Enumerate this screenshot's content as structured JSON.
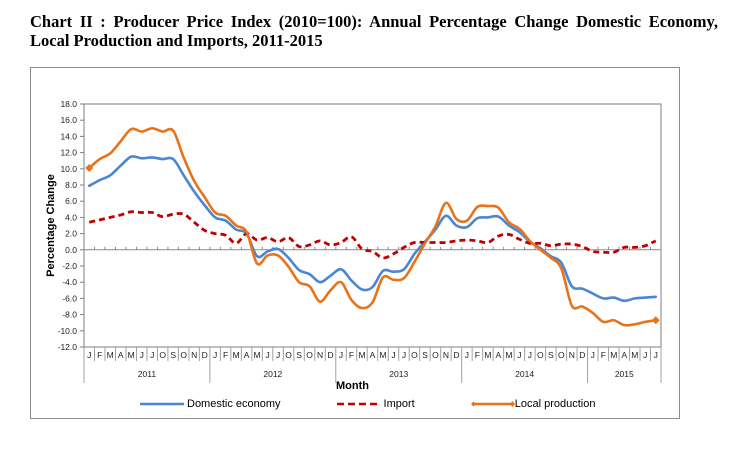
{
  "title": "Chart II : Producer Price Index (2010=100): Annual Percentage Change Domestic Economy, Local Production and Imports, 2011-2015",
  "chart_data": {
    "type": "line",
    "title": "Chart II : Producer Price Index (2010=100): Annual Percentage Change Domestic Economy, Local Production and Imports, 2011-2015",
    "xlabel": "Month",
    "ylabel": "Percentage Change",
    "ylim": [
      -12.0,
      18.0
    ],
    "yticks": [
      "18.0",
      "16.0",
      "14.0",
      "12.0",
      "10.0",
      "8.0",
      "6.0",
      "4.0",
      "2.0",
      "0.0",
      "-2.0",
      "-4.0",
      "-6.0",
      "-8.0",
      "-10.0",
      "-12.0"
    ],
    "years": [
      {
        "label": "2011",
        "months": [
          "J",
          "F",
          "M",
          "A",
          "M",
          "J",
          "J",
          "O",
          "S",
          "O",
          "N",
          "D"
        ]
      },
      {
        "label": "2012",
        "months": [
          "J",
          "F",
          "M",
          "A",
          "M",
          "J",
          "J",
          "O",
          "S",
          "O",
          "N",
          "D"
        ]
      },
      {
        "label": "2013",
        "months": [
          "J",
          "F",
          "M",
          "A",
          "M",
          "J",
          "J",
          "O",
          "S",
          "O",
          "N",
          "D"
        ]
      },
      {
        "label": "2014",
        "months": [
          "J",
          "F",
          "M",
          "A",
          "M",
          "J",
          "J",
          "O",
          "S",
          "O",
          "N",
          "D"
        ]
      },
      {
        "label": "2015",
        "months": [
          "J",
          "F",
          "M",
          "A",
          "M",
          "J",
          "J"
        ]
      }
    ],
    "grid": false,
    "legend_position": "bottom",
    "series": [
      {
        "name": "Domestic economy",
        "color": "#4a86d4",
        "style": "solid",
        "values": [
          7.9,
          8.6,
          9.2,
          10.4,
          11.5,
          11.3,
          11.4,
          11.2,
          11.2,
          9.2,
          7.2,
          5.5,
          4.0,
          3.6,
          2.5,
          2.0,
          -0.8,
          -0.2,
          0.1,
          -1.0,
          -2.5,
          -3.0,
          -4.0,
          -3.2,
          -2.4,
          -3.8,
          -4.9,
          -4.6,
          -2.6,
          -2.7,
          -2.4,
          -0.5,
          1.0,
          2.5,
          4.2,
          3.0,
          2.8,
          3.9,
          4.0,
          4.1,
          3.0,
          2.2,
          1.0,
          0.2,
          -0.8,
          -1.6,
          -4.5,
          -4.8,
          -5.4,
          -6.0,
          -5.9,
          -6.3,
          -6.0,
          -5.9,
          -5.8
        ]
      },
      {
        "name": "Import",
        "color": "#c00000",
        "style": "dashed",
        "values": [
          3.4,
          3.7,
          4.0,
          4.3,
          4.7,
          4.6,
          4.6,
          4.1,
          4.4,
          4.4,
          3.4,
          2.4,
          2.0,
          1.8,
          0.8,
          2.0,
          1.2,
          1.5,
          1.0,
          1.5,
          0.4,
          0.6,
          1.1,
          0.6,
          0.9,
          1.6,
          0.1,
          -0.2,
          -1.0,
          -0.5,
          0.3,
          0.9,
          0.9,
          0.9,
          0.9,
          1.1,
          1.2,
          1.1,
          0.9,
          1.7,
          1.9,
          1.3,
          0.8,
          0.8,
          0.5,
          0.7,
          0.7,
          0.4,
          -0.2,
          -0.3,
          -0.3,
          0.3,
          0.3,
          0.5,
          1.1
        ]
      },
      {
        "name": "Local production",
        "color": "#e8731a",
        "style": "solid-diamond-ends",
        "values": [
          10.1,
          11.2,
          11.9,
          13.4,
          14.9,
          14.6,
          15.0,
          14.6,
          14.7,
          11.4,
          8.5,
          6.5,
          4.6,
          4.2,
          3.0,
          2.2,
          -1.7,
          -0.7,
          -0.7,
          -2.1,
          -4.0,
          -4.5,
          -6.4,
          -5.0,
          -4.0,
          -6.2,
          -7.2,
          -6.5,
          -3.4,
          -3.7,
          -3.5,
          -1.5,
          0.8,
          2.9,
          5.8,
          3.8,
          3.6,
          5.3,
          5.4,
          5.2,
          3.4,
          2.6,
          1.1,
          0.0,
          -1.0,
          -2.3,
          -6.9,
          -7.0,
          -7.8,
          -8.9,
          -8.7,
          -9.3,
          -9.2,
          -8.9,
          -8.7
        ]
      }
    ]
  },
  "legend": [
    {
      "label": "Domestic economy"
    },
    {
      "label": "Import"
    },
    {
      "label": "Local production"
    }
  ]
}
